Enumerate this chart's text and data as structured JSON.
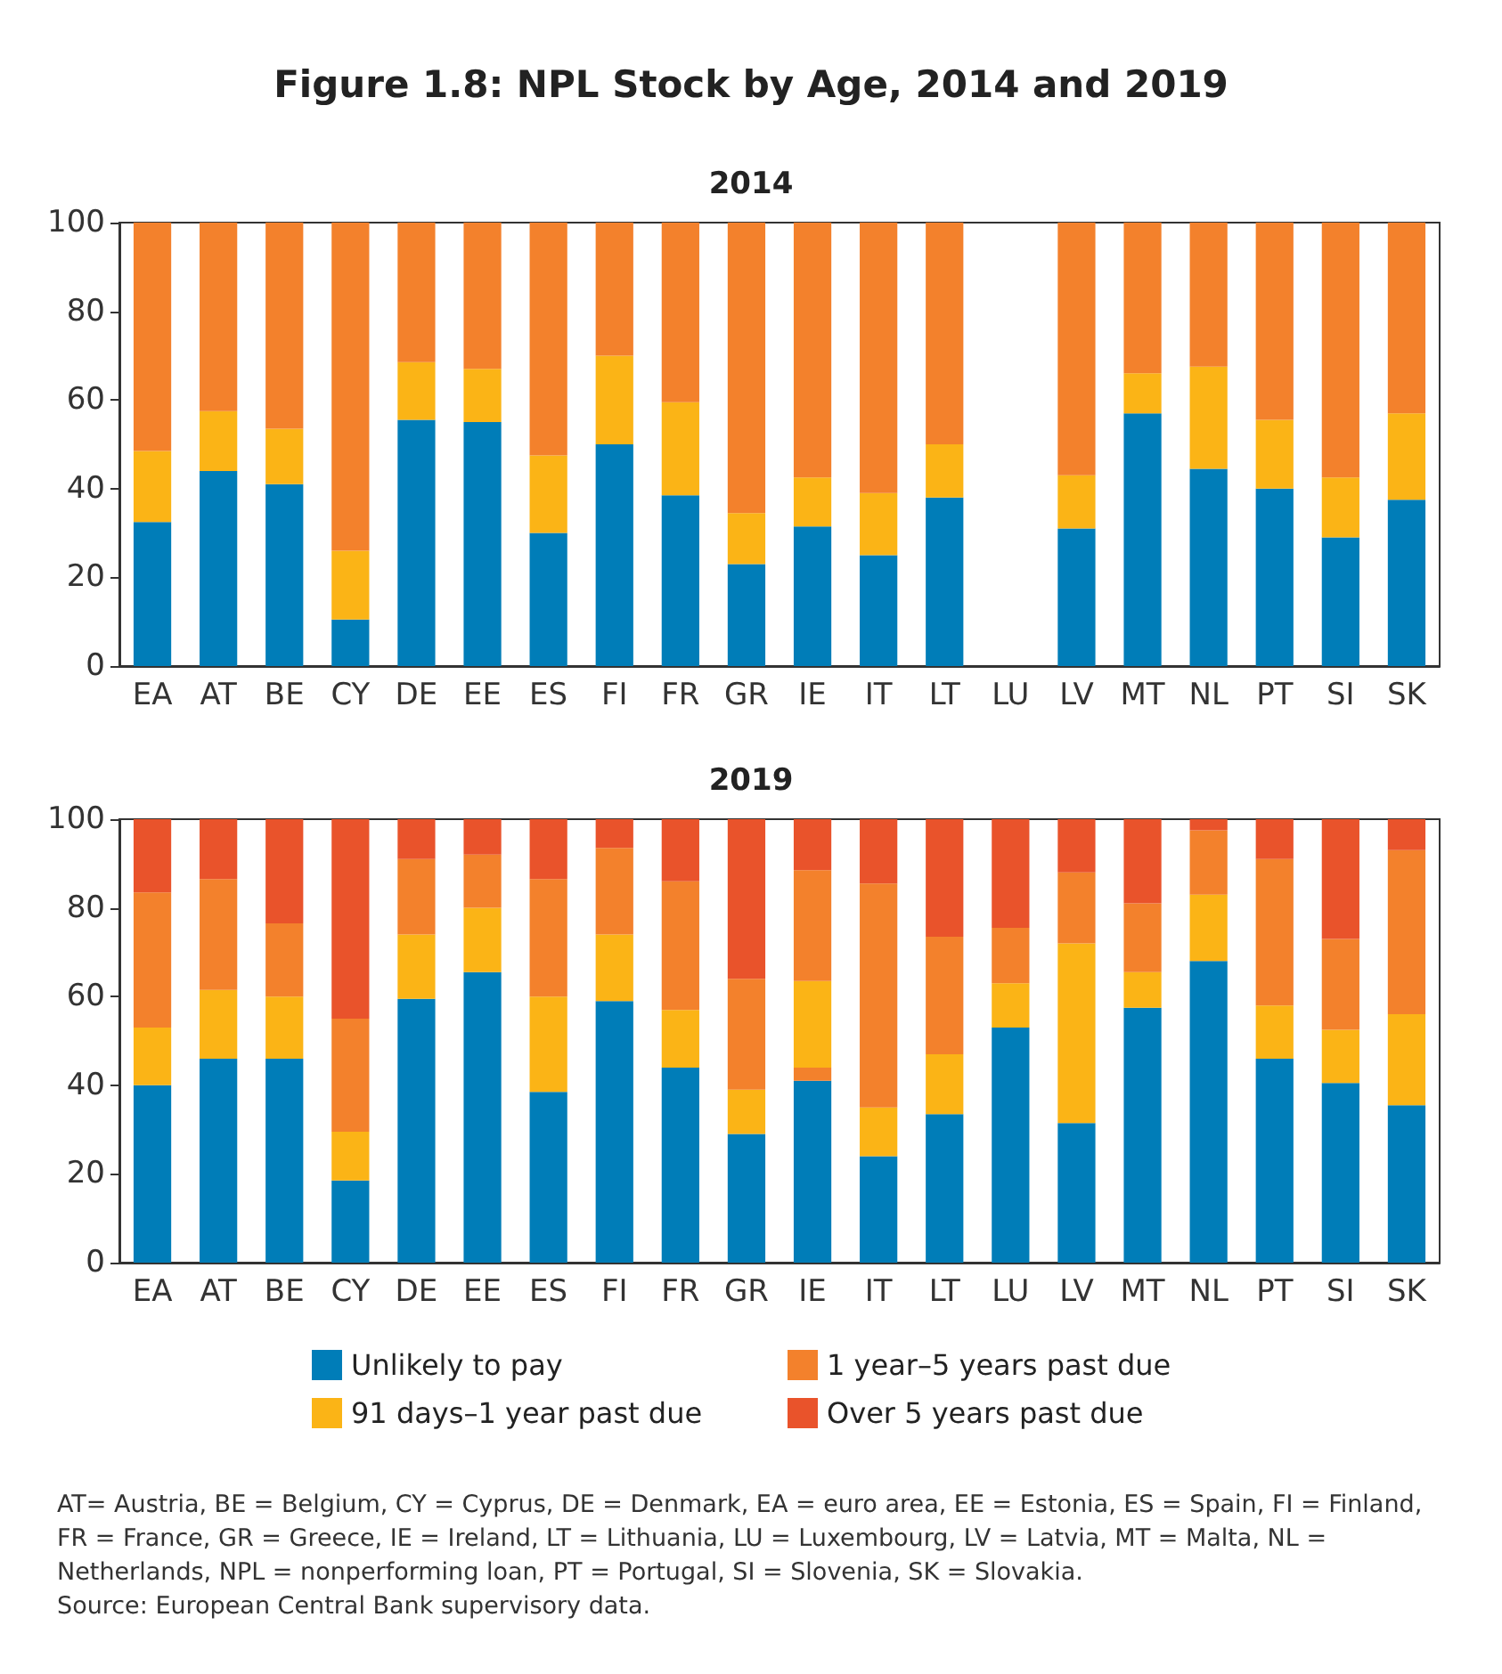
{
  "chart_data": [
    {
      "type": "bar",
      "title": "Figure 1.8: NPL Stock by Age, 2014 and 2019",
      "subtitle": "2014",
      "stacked": true,
      "legend": false,
      "categories": [
        "EA",
        "AT",
        "BE",
        "CY",
        "DE",
        "EE",
        "ES",
        "FI",
        "FR",
        "GR",
        "IE",
        "IT",
        "LT",
        "LU",
        "LV",
        "MT",
        "NL",
        "PT",
        "SI",
        "SK"
      ],
      "series": [
        {
          "color": "#007db8",
          "values": [
            32.5,
            44,
            41,
            10.5,
            55.5,
            55,
            30,
            50,
            38.5,
            23,
            31.5,
            25,
            38,
            null,
            31,
            57,
            44.5,
            40,
            29,
            37.5
          ]
        },
        {
          "color": "#fbb416",
          "values": [
            16,
            13.5,
            12.5,
            15.5,
            13,
            12,
            17.5,
            20,
            21,
            11.5,
            11,
            14,
            12,
            null,
            12,
            9,
            23,
            15.5,
            13.5,
            19.5
          ]
        },
        {
          "color": "#f3812c",
          "values": [
            51.5,
            42.5,
            46.5,
            74,
            31.5,
            33,
            52.5,
            30,
            40.5,
            65.5,
            57.5,
            61,
            50,
            null,
            57,
            34,
            32.5,
            44.5,
            57.5,
            43
          ]
        }
      ],
      "ylim": [
        0,
        100
      ],
      "yticks": [
        0,
        20,
        40,
        60,
        80,
        100
      ],
      "grid": false
    },
    {
      "type": "bar",
      "title": "2019",
      "stacked": true,
      "legend": "bottom",
      "categories": [
        "EA",
        "AT",
        "BE",
        "CY",
        "DE",
        "EE",
        "ES",
        "FI",
        "FR",
        "GR",
        "IE",
        "IT",
        "LT",
        "LU",
        "LV",
        "MT",
        "NL",
        "PT",
        "SI",
        "SK"
      ],
      "series": [
        {
          "name": "Unlikely to pay",
          "color": "#007db8",
          "values": [
            40,
            46,
            46,
            18.5,
            59.5,
            65.5,
            38.5,
            59,
            44,
            29,
            41,
            24,
            33.5,
            53,
            31.5,
            57.5,
            68,
            46,
            40.5,
            35.5
          ]
        },
        {
          "color": "#f3812c",
          "values": [
            null,
            null,
            null,
            null,
            null,
            null,
            null,
            null,
            null,
            null,
            3,
            null,
            null,
            null,
            null,
            null,
            null,
            null,
            null,
            null
          ]
        },
        {
          "name": "91 days–1 year past due",
          "color": "#fbb416",
          "values": [
            13,
            15.5,
            14,
            11,
            14.5,
            14.5,
            21.5,
            15,
            13,
            10,
            19.5,
            11,
            13.5,
            10,
            40.5,
            8,
            15,
            12,
            12,
            20.5
          ]
        },
        {
          "name": "1 year–5 years past due",
          "color": "#f3812c",
          "values": [
            30.5,
            25,
            16.5,
            25.5,
            17,
            12,
            26.5,
            19.5,
            29,
            25,
            25,
            50.5,
            26.5,
            12.5,
            16,
            15.5,
            14.5,
            33,
            20.5,
            37
          ]
        },
        {
          "name": "Over 5 years past due",
          "color": "#e9532b",
          "values": [
            16.5,
            13.5,
            23.5,
            45,
            9,
            8,
            13.5,
            6.5,
            14,
            36,
            11.5,
            14.5,
            26.5,
            24.5,
            12,
            19,
            2.5,
            9,
            27,
            7
          ]
        }
      ],
      "ylim": [
        0,
        100
      ],
      "yticks": [
        0,
        20,
        40,
        60,
        80,
        100
      ],
      "grid": false,
      "annotations": [
        "AT= Austria, BE = Belgium, CY = Cyprus, DE = Denmark, EA = euro area, EE = Estonia, ES = Spain, FI = Finland, FR = France, GR = Greece, IE = Ireland, LT = Lithuania, LU = Luxembourg, LV = Latvia, MT = Malta, NL = Netherlands, NPL = nonperforming loan, PT = Portugal, SI = Slovenia, SK = Slovakia.",
        "Source: European Central Bank supervisory data."
      ]
    }
  ]
}
